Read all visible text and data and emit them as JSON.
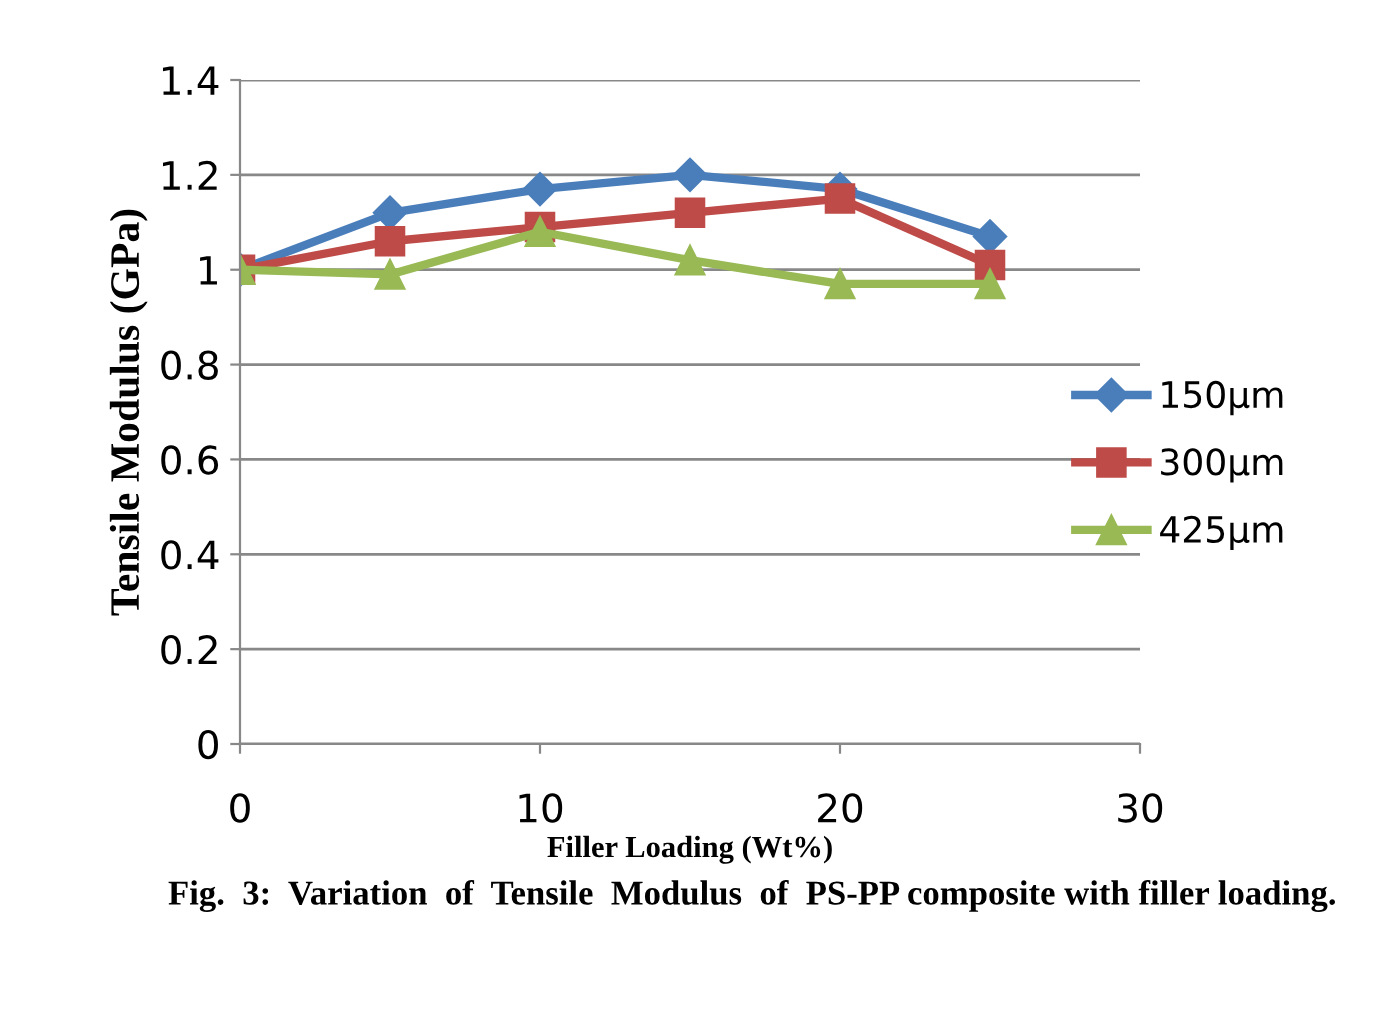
{
  "chart_data": {
    "type": "line",
    "xlabel": "Filler Loading (Wt%)",
    "ylabel": "Tensile Modulus (GPa)",
    "x": [
      0,
      5,
      10,
      15,
      20,
      25
    ],
    "series": [
      {
        "name": "150µm",
        "color": "#4a7ebb",
        "marker": "diamond",
        "values": [
          1.0,
          1.12,
          1.17,
          1.2,
          1.17,
          1.07
        ]
      },
      {
        "name": "300µm",
        "color": "#be4b48",
        "marker": "square",
        "values": [
          1.0,
          1.06,
          1.09,
          1.12,
          1.15,
          1.01
        ]
      },
      {
        "name": "425µm",
        "color": "#98b954",
        "marker": "triangle",
        "values": [
          1.0,
          0.99,
          1.08,
          1.02,
          0.97,
          0.97
        ]
      }
    ],
    "xlim": [
      0,
      30
    ],
    "xticks": [
      0,
      10,
      20,
      30
    ],
    "ylim": [
      0,
      1.4
    ],
    "yticks": [
      0,
      {
        "value": 0.2,
        "label": "0.2"
      },
      {
        "value": 0.4,
        "label": "0.4"
      },
      {
        "value": 0.6,
        "label": "0.6"
      },
      {
        "value": 0.8,
        "label": "0.8"
      },
      1,
      {
        "value": 1.2,
        "label": "1.2"
      },
      {
        "value": 1.4,
        "label": "1.4"
      }
    ],
    "grid": "y",
    "legend": "right",
    "line_style": "solid",
    "annotations": [
      "Fig.  3:  Variation  of  Tensile  Modulus  of  PS-PP composite with filler loading."
    ]
  }
}
